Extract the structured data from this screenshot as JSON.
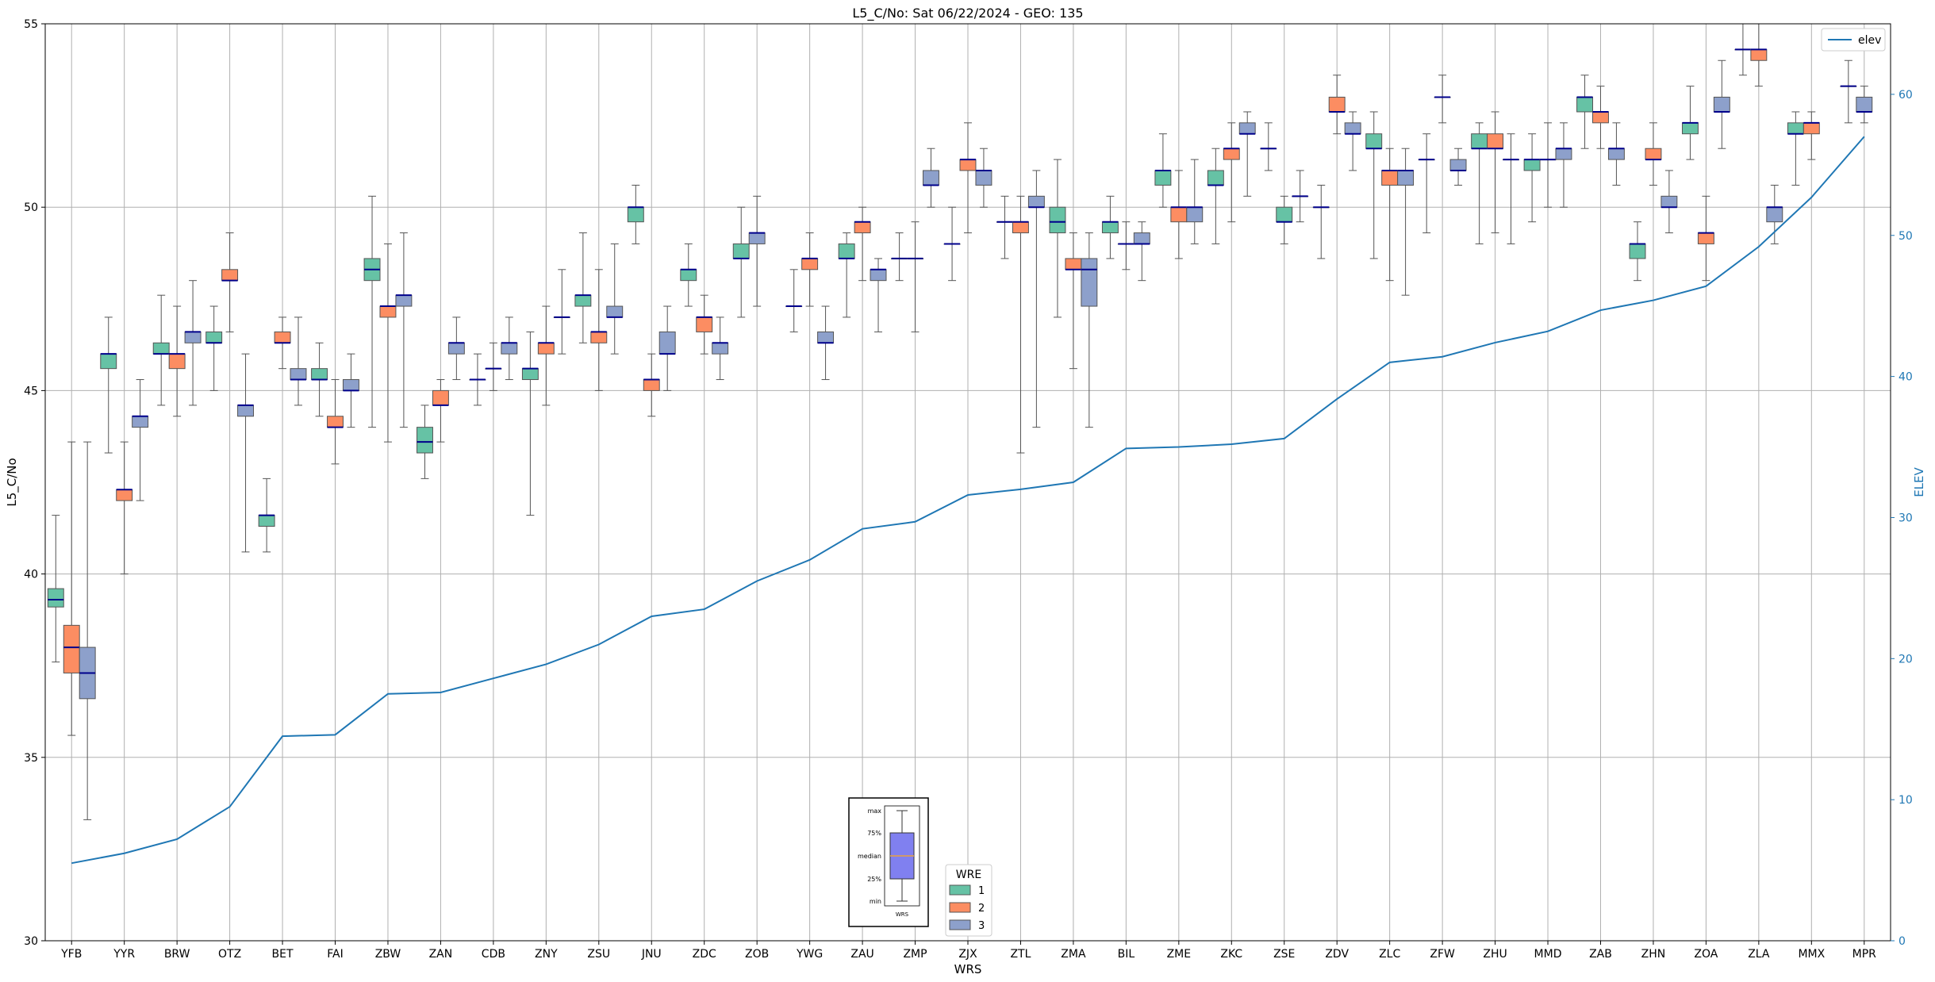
{
  "chart_data": {
    "type": "box",
    "title": "L5_C/No: Sat 06/22/2024 - GEO: 135",
    "xlabel": "WRS",
    "ylabel": "L5_C/No",
    "y2label": "ELEV",
    "ylim": [
      30,
      55
    ],
    "y2lim": [
      0,
      65
    ],
    "yticks": [
      30,
      35,
      40,
      45,
      50,
      55
    ],
    "y2ticks": [
      0,
      10,
      20,
      30,
      40,
      50,
      60
    ],
    "grid": true,
    "categories": [
      "YFB",
      "YYR",
      "BRW",
      "OTZ",
      "BET",
      "FAI",
      "ZBW",
      "ZAN",
      "CDB",
      "ZNY",
      "ZSU",
      "JNU",
      "ZDC",
      "ZOB",
      "YWG",
      "ZAU",
      "ZMP",
      "ZJX",
      "ZTL",
      "ZMA",
      "BIL",
      "ZME",
      "ZKC",
      "ZSE",
      "ZDV",
      "ZLC",
      "ZFW",
      "ZHU",
      "MMD",
      "ZAB",
      "ZHN",
      "ZOA",
      "ZLA",
      "MMX",
      "MPR"
    ],
    "colors": {
      "1": "#66c2a5",
      "2": "#fc8d62",
      "3": "#8da0cb",
      "elev": "#1f77b4",
      "median": "#00008b"
    },
    "wre_legend": {
      "title": "WRE",
      "entries": [
        "1",
        "2",
        "3"
      ]
    },
    "line_legend": {
      "entries": [
        "elev"
      ]
    },
    "key_labels": {
      "max": "max",
      "q3": "75%",
      "median": "median",
      "q1": "25%",
      "min": "min",
      "xlabel": "WRS"
    },
    "elev": [
      5.5,
      6.2,
      7.2,
      9.5,
      14.5,
      14.6,
      17.5,
      17.6,
      18.6,
      19.6,
      21.0,
      23.0,
      23.5,
      25.5,
      27.0,
      29.2,
      29.7,
      31.6,
      32.0,
      32.5,
      34.9,
      35.0,
      35.2,
      35.6,
      38.4,
      41.0,
      41.4,
      42.4,
      43.2,
      44.7,
      45.4,
      46.4,
      49.2,
      52.7,
      57.0
    ],
    "boxes": [
      {
        "cat": "YFB",
        "wre": "1",
        "min": 37.6,
        "q1": 39.1,
        "median": 39.3,
        "q3": 39.6,
        "max": 41.6
      },
      {
        "cat": "YFB",
        "wre": "2",
        "min": 35.6,
        "q1": 37.3,
        "median": 38.0,
        "q3": 38.6,
        "max": 43.6
      },
      {
        "cat": "YFB",
        "wre": "3",
        "min": 33.3,
        "q1": 36.6,
        "median": 37.3,
        "q3": 38.0,
        "max": 43.6
      },
      {
        "cat": "YYR",
        "wre": "1",
        "min": 43.3,
        "q1": 45.6,
        "median": 46.0,
        "q3": 46.0,
        "max": 47.0
      },
      {
        "cat": "YYR",
        "wre": "2",
        "min": 40.0,
        "q1": 42.0,
        "median": 42.3,
        "q3": 42.3,
        "max": 43.6
      },
      {
        "cat": "YYR",
        "wre": "3",
        "min": 42.0,
        "q1": 44.0,
        "median": 44.3,
        "q3": 44.3,
        "max": 45.3
      },
      {
        "cat": "BRW",
        "wre": "1",
        "min": 44.6,
        "q1": 46.0,
        "median": 46.0,
        "q3": 46.3,
        "max": 47.6
      },
      {
        "cat": "BRW",
        "wre": "2",
        "min": 44.3,
        "q1": 45.6,
        "median": 46.0,
        "q3": 46.0,
        "max": 47.3
      },
      {
        "cat": "BRW",
        "wre": "3",
        "min": 44.6,
        "q1": 46.3,
        "median": 46.6,
        "q3": 46.6,
        "max": 48.0
      },
      {
        "cat": "OTZ",
        "wre": "1",
        "min": 45.0,
        "q1": 46.3,
        "median": 46.3,
        "q3": 46.6,
        "max": 47.3
      },
      {
        "cat": "OTZ",
        "wre": "2",
        "min": 46.6,
        "q1": 48.0,
        "median": 48.0,
        "q3": 48.3,
        "max": 49.3
      },
      {
        "cat": "OTZ",
        "wre": "3",
        "min": 40.6,
        "q1": 44.3,
        "median": 44.6,
        "q3": 44.6,
        "max": 46.0
      },
      {
        "cat": "BET",
        "wre": "1",
        "min": 40.6,
        "q1": 41.3,
        "median": 41.6,
        "q3": 41.6,
        "max": 42.6
      },
      {
        "cat": "BET",
        "wre": "2",
        "min": 45.6,
        "q1": 46.3,
        "median": 46.3,
        "q3": 46.6,
        "max": 47.0
      },
      {
        "cat": "BET",
        "wre": "3",
        "min": 44.6,
        "q1": 45.3,
        "median": 45.3,
        "q3": 45.6,
        "max": 47.0
      },
      {
        "cat": "FAI",
        "wre": "1",
        "min": 44.3,
        "q1": 45.3,
        "median": 45.3,
        "q3": 45.6,
        "max": 46.3
      },
      {
        "cat": "FAI",
        "wre": "2",
        "min": 43.0,
        "q1": 44.0,
        "median": 44.0,
        "q3": 44.3,
        "max": 45.3
      },
      {
        "cat": "FAI",
        "wre": "3",
        "min": 44.0,
        "q1": 45.0,
        "median": 45.0,
        "q3": 45.3,
        "max": 46.0
      },
      {
        "cat": "ZBW",
        "wre": "1",
        "min": 44.0,
        "q1": 48.0,
        "median": 48.3,
        "q3": 48.6,
        "max": 50.3
      },
      {
        "cat": "ZBW",
        "wre": "2",
        "min": 43.6,
        "q1": 47.0,
        "median": 47.3,
        "q3": 47.3,
        "max": 49.0
      },
      {
        "cat": "ZBW",
        "wre": "3",
        "min": 44.0,
        "q1": 47.3,
        "median": 47.6,
        "q3": 47.6,
        "max": 49.3
      },
      {
        "cat": "ZAN",
        "wre": "1",
        "min": 42.6,
        "q1": 43.3,
        "median": 43.6,
        "q3": 44.0,
        "max": 44.6
      },
      {
        "cat": "ZAN",
        "wre": "2",
        "min": 43.6,
        "q1": 44.6,
        "median": 44.6,
        "q3": 45.0,
        "max": 45.3
      },
      {
        "cat": "ZAN",
        "wre": "3",
        "min": 45.3,
        "q1": 46.0,
        "median": 46.3,
        "q3": 46.3,
        "max": 47.0
      },
      {
        "cat": "CDB",
        "wre": "3a",
        "wre_color": "3",
        "min": 44.6,
        "q1": 45.3,
        "median": 45.3,
        "q3": 45.3,
        "max": 46.0
      },
      {
        "cat": "CDB",
        "wre": "3b",
        "wre_color": "3",
        "min": 45.0,
        "q1": 45.6,
        "median": 45.6,
        "q3": 45.6,
        "max": 46.3
      },
      {
        "cat": "CDB",
        "wre": "3",
        "min": 45.3,
        "q1": 46.0,
        "median": 46.3,
        "q3": 46.3,
        "max": 47.0
      },
      {
        "cat": "ZNY",
        "wre": "1",
        "min": 41.6,
        "q1": 45.3,
        "median": 45.6,
        "q3": 45.6,
        "max": 46.6
      },
      {
        "cat": "ZNY",
        "wre": "2",
        "min": 44.6,
        "q1": 46.0,
        "median": 46.3,
        "q3": 46.3,
        "max": 47.3
      },
      {
        "cat": "ZNY",
        "wre": "3",
        "min": 46.0,
        "q1": 47.0,
        "median": 47.0,
        "q3": 47.0,
        "max": 48.3
      },
      {
        "cat": "ZSU",
        "wre": "1",
        "min": 46.3,
        "q1": 47.3,
        "median": 47.6,
        "q3": 47.6,
        "max": 49.3
      },
      {
        "cat": "ZSU",
        "wre": "2",
        "min": 45.0,
        "q1": 46.3,
        "median": 46.6,
        "q3": 46.6,
        "max": 48.3
      },
      {
        "cat": "ZSU",
        "wre": "3",
        "min": 46.0,
        "q1": 47.0,
        "median": 47.0,
        "q3": 47.3,
        "max": 49.0
      },
      {
        "cat": "JNU",
        "wre": "1",
        "min": 49.0,
        "q1": 49.6,
        "median": 50.0,
        "q3": 50.0,
        "max": 50.6
      },
      {
        "cat": "JNU",
        "wre": "2",
        "min": 44.3,
        "q1": 45.0,
        "median": 45.3,
        "q3": 45.3,
        "max": 46.0
      },
      {
        "cat": "JNU",
        "wre": "3",
        "min": 45.0,
        "q1": 46.0,
        "median": 46.0,
        "q3": 46.6,
        "max": 47.3
      },
      {
        "cat": "ZDC",
        "wre": "1",
        "min": 47.3,
        "q1": 48.0,
        "median": 48.3,
        "q3": 48.3,
        "max": 49.0
      },
      {
        "cat": "ZDC",
        "wre": "2",
        "min": 46.0,
        "q1": 46.6,
        "median": 47.0,
        "q3": 47.0,
        "max": 47.6
      },
      {
        "cat": "ZDC",
        "wre": "3",
        "min": 45.3,
        "q1": 46.0,
        "median": 46.3,
        "q3": 46.3,
        "max": 47.0
      },
      {
        "cat": "ZOB",
        "wre": "1",
        "min": 47.0,
        "q1": 48.6,
        "median": 48.6,
        "q3": 49.0,
        "max": 50.0
      },
      {
        "cat": "ZOB",
        "wre": "3",
        "min": 47.3,
        "q1": 49.0,
        "median": 49.3,
        "q3": 49.3,
        "max": 50.3
      },
      {
        "cat": "YWG",
        "wre": "3a",
        "wre_color": "3",
        "min": 46.6,
        "q1": 47.3,
        "median": 47.3,
        "q3": 47.3,
        "max": 48.3
      },
      {
        "cat": "YWG",
        "wre": "2",
        "min": 47.3,
        "q1": 48.3,
        "median": 48.6,
        "q3": 48.6,
        "max": 49.3
      },
      {
        "cat": "YWG",
        "wre": "3",
        "min": 45.3,
        "q1": 46.3,
        "median": 46.3,
        "q3": 46.6,
        "max": 47.3
      },
      {
        "cat": "ZAU",
        "wre": "1",
        "min": 47.0,
        "q1": 48.6,
        "median": 48.6,
        "q3": 49.0,
        "max": 49.3
      },
      {
        "cat": "ZAU",
        "wre": "2",
        "min": 48.0,
        "q1": 49.3,
        "median": 49.6,
        "q3": 49.6,
        "max": 50.0
      },
      {
        "cat": "ZAU",
        "wre": "3",
        "min": 46.6,
        "q1": 48.0,
        "median": 48.3,
        "q3": 48.3,
        "max": 48.6
      },
      {
        "cat": "ZMP",
        "wre": "3a",
        "wre_color": "3",
        "min": 48.0,
        "q1": 48.6,
        "median": 48.6,
        "q3": 48.6,
        "max": 49.3
      },
      {
        "cat": "ZMP",
        "wre": "3b",
        "wre_color": "3",
        "min": 46.6,
        "q1": 48.6,
        "median": 48.6,
        "q3": 48.6,
        "max": 49.6
      },
      {
        "cat": "ZMP",
        "wre": "3",
        "min": 50.0,
        "q1": 50.6,
        "median": 50.6,
        "q3": 51.0,
        "max": 51.6
      },
      {
        "cat": "ZJX",
        "wre": "1",
        "min": 48.0,
        "q1": 49.0,
        "median": 49.0,
        "q3": 49.0,
        "max": 50.0
      },
      {
        "cat": "ZJX",
        "wre": "2",
        "min": 49.3,
        "q1": 51.0,
        "median": 51.3,
        "q3": 51.3,
        "max": 52.3
      },
      {
        "cat": "ZJX",
        "wre": "3",
        "min": 50.0,
        "q1": 50.6,
        "median": 51.0,
        "q3": 51.0,
        "max": 51.6
      },
      {
        "cat": "ZTL",
        "wre": "1",
        "min": 48.6,
        "q1": 49.6,
        "median": 49.6,
        "q3": 49.6,
        "max": 50.3
      },
      {
        "cat": "ZTL",
        "wre": "2",
        "min": 43.3,
        "q1": 49.3,
        "median": 49.6,
        "q3": 49.6,
        "max": 50.3
      },
      {
        "cat": "ZTL",
        "wre": "3",
        "min": 44.0,
        "q1": 50.0,
        "median": 50.0,
        "q3": 50.3,
        "max": 51.0
      },
      {
        "cat": "ZMA",
        "wre": "1",
        "min": 47.0,
        "q1": 49.3,
        "median": 49.6,
        "q3": 50.0,
        "max": 51.3
      },
      {
        "cat": "ZMA",
        "wre": "2",
        "min": 45.6,
        "q1": 48.3,
        "median": 48.3,
        "q3": 48.6,
        "max": 49.3
      },
      {
        "cat": "ZMA",
        "wre": "3",
        "min": 44.0,
        "q1": 47.3,
        "median": 48.3,
        "q3": 48.6,
        "max": 49.3
      },
      {
        "cat": "BIL",
        "wre": "1",
        "min": 48.6,
        "q1": 49.3,
        "median": 49.6,
        "q3": 49.6,
        "max": 50.3
      },
      {
        "cat": "BIL",
        "wre": "3a",
        "wre_color": "3",
        "min": 48.3,
        "q1": 49.0,
        "median": 49.0,
        "q3": 49.0,
        "max": 49.6
      },
      {
        "cat": "BIL",
        "wre": "3",
        "min": 48.0,
        "q1": 49.0,
        "median": 49.0,
        "q3": 49.3,
        "max": 49.6
      },
      {
        "cat": "ZME",
        "wre": "1",
        "min": 50.0,
        "q1": 50.6,
        "median": 51.0,
        "q3": 51.0,
        "max": 52.0
      },
      {
        "cat": "ZME",
        "wre": "2",
        "min": 48.6,
        "q1": 49.6,
        "median": 50.0,
        "q3": 50.0,
        "max": 51.0
      },
      {
        "cat": "ZME",
        "wre": "3",
        "min": 49.0,
        "q1": 49.6,
        "median": 50.0,
        "q3": 50.0,
        "max": 51.3
      },
      {
        "cat": "ZKC",
        "wre": "1",
        "min": 49.0,
        "q1": 50.6,
        "median": 50.6,
        "q3": 51.0,
        "max": 51.6
      },
      {
        "cat": "ZKC",
        "wre": "2",
        "min": 49.6,
        "q1": 51.3,
        "median": 51.6,
        "q3": 51.6,
        "max": 52.3
      },
      {
        "cat": "ZKC",
        "wre": "3",
        "min": 50.3,
        "q1": 52.0,
        "median": 52.0,
        "q3": 52.3,
        "max": 52.6
      },
      {
        "cat": "ZSE",
        "wre": "3a",
        "wre_color": "3",
        "min": 51.0,
        "q1": 51.6,
        "median": 51.6,
        "q3": 51.6,
        "max": 52.3
      },
      {
        "cat": "ZSE",
        "wre": "1",
        "min": 49.0,
        "q1": 49.6,
        "median": 49.6,
        "q3": 50.0,
        "max": 50.3
      },
      {
        "cat": "ZSE",
        "wre": "3",
        "min": 49.6,
        "q1": 50.3,
        "median": 50.3,
        "q3": 50.3,
        "max": 51.0
      },
      {
        "cat": "ZDV",
        "wre": "3a",
        "wre_color": "3",
        "min": 48.6,
        "q1": 50.0,
        "median": 50.0,
        "q3": 50.0,
        "max": 50.6
      },
      {
        "cat": "ZDV",
        "wre": "2",
        "min": 52.0,
        "q1": 52.6,
        "median": 52.6,
        "q3": 53.0,
        "max": 53.6
      },
      {
        "cat": "ZDV",
        "wre": "3",
        "min": 51.0,
        "q1": 52.0,
        "median": 52.0,
        "q3": 52.3,
        "max": 52.6
      },
      {
        "cat": "ZLC",
        "wre": "1",
        "min": 48.6,
        "q1": 51.6,
        "median": 51.6,
        "q3": 52.0,
        "max": 52.6
      },
      {
        "cat": "ZLC",
        "wre": "2",
        "min": 48.0,
        "q1": 50.6,
        "median": 51.0,
        "q3": 51.0,
        "max": 51.6
      },
      {
        "cat": "ZLC",
        "wre": "3",
        "min": 47.6,
        "q1": 50.6,
        "median": 51.0,
        "q3": 51.0,
        "max": 51.6
      },
      {
        "cat": "ZFW",
        "wre": "3a",
        "wre_color": "3",
        "min": 49.3,
        "q1": 51.3,
        "median": 51.3,
        "q3": 51.3,
        "max": 52.0
      },
      {
        "cat": "ZFW",
        "wre": "3b",
        "wre_color": "3",
        "min": 52.3,
        "q1": 53.0,
        "median": 53.0,
        "q3": 53.0,
        "max": 53.6
      },
      {
        "cat": "ZFW",
        "wre": "3",
        "min": 50.6,
        "q1": 51.0,
        "median": 51.0,
        "q3": 51.3,
        "max": 51.6
      },
      {
        "cat": "ZHU",
        "wre": "1",
        "min": 49.0,
        "q1": 51.6,
        "median": 51.6,
        "q3": 52.0,
        "max": 52.3
      },
      {
        "cat": "ZHU",
        "wre": "2",
        "min": 49.3,
        "q1": 51.6,
        "median": 51.6,
        "q3": 52.0,
        "max": 52.6
      },
      {
        "cat": "ZHU",
        "wre": "3a",
        "wre_color": "3",
        "min": 49.0,
        "q1": 51.3,
        "median": 51.3,
        "q3": 51.3,
        "max": 52.0
      },
      {
        "cat": "MMD",
        "wre": "1",
        "min": 49.6,
        "q1": 51.0,
        "median": 51.3,
        "q3": 51.3,
        "max": 52.0
      },
      {
        "cat": "MMD",
        "wre": "3a",
        "wre_color": "3",
        "min": 50.0,
        "q1": 51.3,
        "median": 51.3,
        "q3": 51.3,
        "max": 52.3
      },
      {
        "cat": "MMD",
        "wre": "3",
        "min": 50.0,
        "q1": 51.3,
        "median": 51.6,
        "q3": 51.6,
        "max": 52.3
      },
      {
        "cat": "ZAB",
        "wre": "1",
        "min": 51.6,
        "q1": 52.6,
        "median": 53.0,
        "q3": 53.0,
        "max": 53.6
      },
      {
        "cat": "ZAB",
        "wre": "2",
        "min": 51.6,
        "q1": 52.3,
        "median": 52.6,
        "q3": 52.6,
        "max": 53.3
      },
      {
        "cat": "ZAB",
        "wre": "3",
        "min": 50.6,
        "q1": 51.3,
        "median": 51.6,
        "q3": 51.6,
        "max": 52.3
      },
      {
        "cat": "ZHN",
        "wre": "1",
        "min": 48.0,
        "q1": 48.6,
        "median": 49.0,
        "q3": 49.0,
        "max": 49.6
      },
      {
        "cat": "ZHN",
        "wre": "2",
        "min": 50.6,
        "q1": 51.3,
        "median": 51.3,
        "q3": 51.6,
        "max": 52.3
      },
      {
        "cat": "ZHN",
        "wre": "3",
        "min": 49.3,
        "q1": 50.0,
        "median": 50.0,
        "q3": 50.3,
        "max": 51.0
      },
      {
        "cat": "ZOA",
        "wre": "1",
        "min": 51.3,
        "q1": 52.0,
        "median": 52.3,
        "q3": 52.3,
        "max": 53.3
      },
      {
        "cat": "ZOA",
        "wre": "2",
        "min": 48.0,
        "q1": 49.0,
        "median": 49.3,
        "q3": 49.3,
        "max": 50.3
      },
      {
        "cat": "ZOA",
        "wre": "3",
        "min": 51.6,
        "q1": 52.6,
        "median": 52.6,
        "q3": 53.0,
        "max": 54.0
      },
      {
        "cat": "ZLA",
        "wre": "3a",
        "wre_color": "3",
        "min": 53.6,
        "q1": 54.3,
        "median": 54.3,
        "q3": 54.3,
        "max": 55.0
      },
      {
        "cat": "ZLA",
        "wre": "2",
        "min": 53.3,
        "q1": 54.0,
        "median": 54.3,
        "q3": 54.3,
        "max": 55.0
      },
      {
        "cat": "ZLA",
        "wre": "3",
        "min": 49.0,
        "q1": 49.6,
        "median": 50.0,
        "q3": 50.0,
        "max": 50.6
      },
      {
        "cat": "MMX",
        "wre": "1",
        "min": 50.6,
        "q1": 52.0,
        "median": 52.0,
        "q3": 52.3,
        "max": 52.6
      },
      {
        "cat": "MMX",
        "wre": "2",
        "min": 51.3,
        "q1": 52.0,
        "median": 52.3,
        "q3": 52.3,
        "max": 52.6
      },
      {
        "cat": "MPR",
        "wre": "3a",
        "wre_color": "3",
        "min": 52.3,
        "q1": 53.3,
        "median": 53.3,
        "q3": 53.3,
        "max": 54.0
      },
      {
        "cat": "MPR",
        "wre": "3",
        "min": 52.3,
        "q1": 52.6,
        "median": 52.6,
        "q3": 53.0,
        "max": 53.3
      }
    ]
  }
}
